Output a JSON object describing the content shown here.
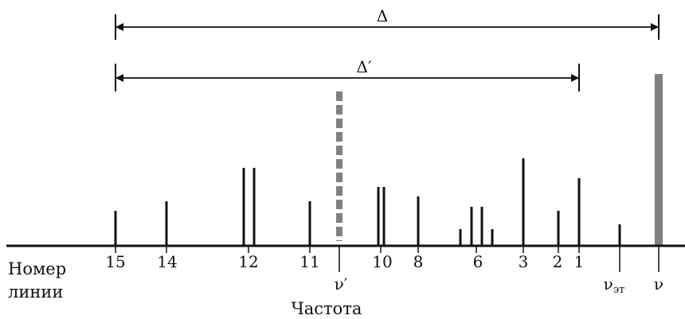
{
  "measures": {
    "delta": "Δ",
    "delta_prime": "Δ′"
  },
  "axis": {
    "row_label_line1": "Номер",
    "row_label_line2": "линии",
    "axis_title": "Частота"
  },
  "line_numbers": [
    "15",
    "14",
    "12",
    "11",
    "10",
    "8",
    "6",
    "3",
    "2",
    "1"
  ],
  "frequency_markers": {
    "nu_prime": "ν′",
    "nu_ref": "ν",
    "nu_ref_sub": "эт",
    "nu": "ν"
  },
  "colors": {
    "ink": "#111111",
    "highlight": "#808080"
  }
}
